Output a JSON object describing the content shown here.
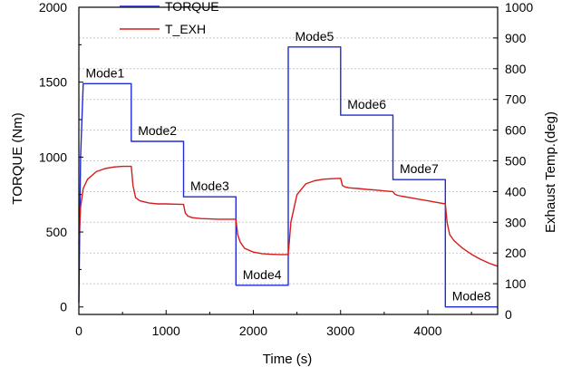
{
  "chart_data": {
    "type": "line",
    "title": "",
    "xlabel": "Time (s)",
    "ylabel": "TORQUE (Nm)",
    "y2label": "Exhaust Temp.(deg)",
    "xlim": [
      0,
      4800
    ],
    "ylim": [
      -50,
      2000
    ],
    "y2lim": [
      0,
      1000
    ],
    "x_ticks": [
      0,
      1000,
      2000,
      3000,
      4000
    ],
    "y_ticks": [
      0,
      500,
      1000,
      1500,
      2000
    ],
    "y2_ticks": [
      0,
      100,
      200,
      300,
      400,
      500,
      600,
      700,
      800,
      900,
      1000
    ],
    "grid": "dashed horizontal lines on right-axis ticks",
    "legend_position": "top-center",
    "series": [
      {
        "name": "TORQUE",
        "axis": "left",
        "color": "#1f2bd6",
        "x": [
          0,
          20,
          50,
          600,
          600,
          1200,
          1200,
          1800,
          1800,
          2400,
          2400,
          3000,
          3000,
          3600,
          3600,
          4200,
          4200,
          4800
        ],
        "y": [
          30,
          1000,
          1490,
          1490,
          1105,
          1105,
          735,
          735,
          145,
          145,
          1735,
          1735,
          1280,
          1280,
          850,
          850,
          0,
          0
        ]
      },
      {
        "name": "T_EXH",
        "axis": "right",
        "color": "#d81b1b",
        "x": [
          0,
          20,
          50,
          100,
          200,
          300,
          400,
          500,
          600,
          620,
          650,
          700,
          800,
          900,
          1000,
          1100,
          1200,
          1220,
          1250,
          1300,
          1400,
          1500,
          1600,
          1700,
          1800,
          1820,
          1850,
          1900,
          2000,
          2100,
          2200,
          2300,
          2400,
          2430,
          2500,
          2600,
          2700,
          2800,
          2900,
          3000,
          3020,
          3050,
          3100,
          3200,
          3300,
          3400,
          3500,
          3600,
          3620,
          3650,
          3700,
          3800,
          3900,
          4000,
          4100,
          4200,
          4220,
          4250,
          4300,
          4400,
          4500,
          4600,
          4700,
          4800
        ],
        "y": [
          230,
          350,
          410,
          440,
          465,
          475,
          480,
          482,
          482,
          420,
          380,
          370,
          363,
          360,
          360,
          359,
          358,
          330,
          320,
          315,
          312,
          311,
          310,
          310,
          310,
          260,
          235,
          215,
          203,
          198,
          196,
          195,
          195,
          300,
          390,
          425,
          435,
          440,
          442,
          443,
          420,
          415,
          412,
          410,
          407,
          405,
          402,
          400,
          392,
          388,
          385,
          380,
          375,
          370,
          365,
          360,
          300,
          260,
          240,
          215,
          196,
          180,
          167,
          157
        ]
      }
    ],
    "annotations": [
      {
        "text": "Mode1",
        "x": 300,
        "y": 1490
      },
      {
        "text": "Mode2",
        "x": 900,
        "y": 1105
      },
      {
        "text": "Mode3",
        "x": 1500,
        "y": 735
      },
      {
        "text": "Mode4",
        "x": 2100,
        "y": 145
      },
      {
        "text": "Mode5",
        "x": 2700,
        "y": 1735
      },
      {
        "text": "Mode6",
        "x": 3300,
        "y": 1280
      },
      {
        "text": "Mode7",
        "x": 3900,
        "y": 850
      },
      {
        "text": "Mode8",
        "x": 4500,
        "y": 0
      }
    ]
  }
}
